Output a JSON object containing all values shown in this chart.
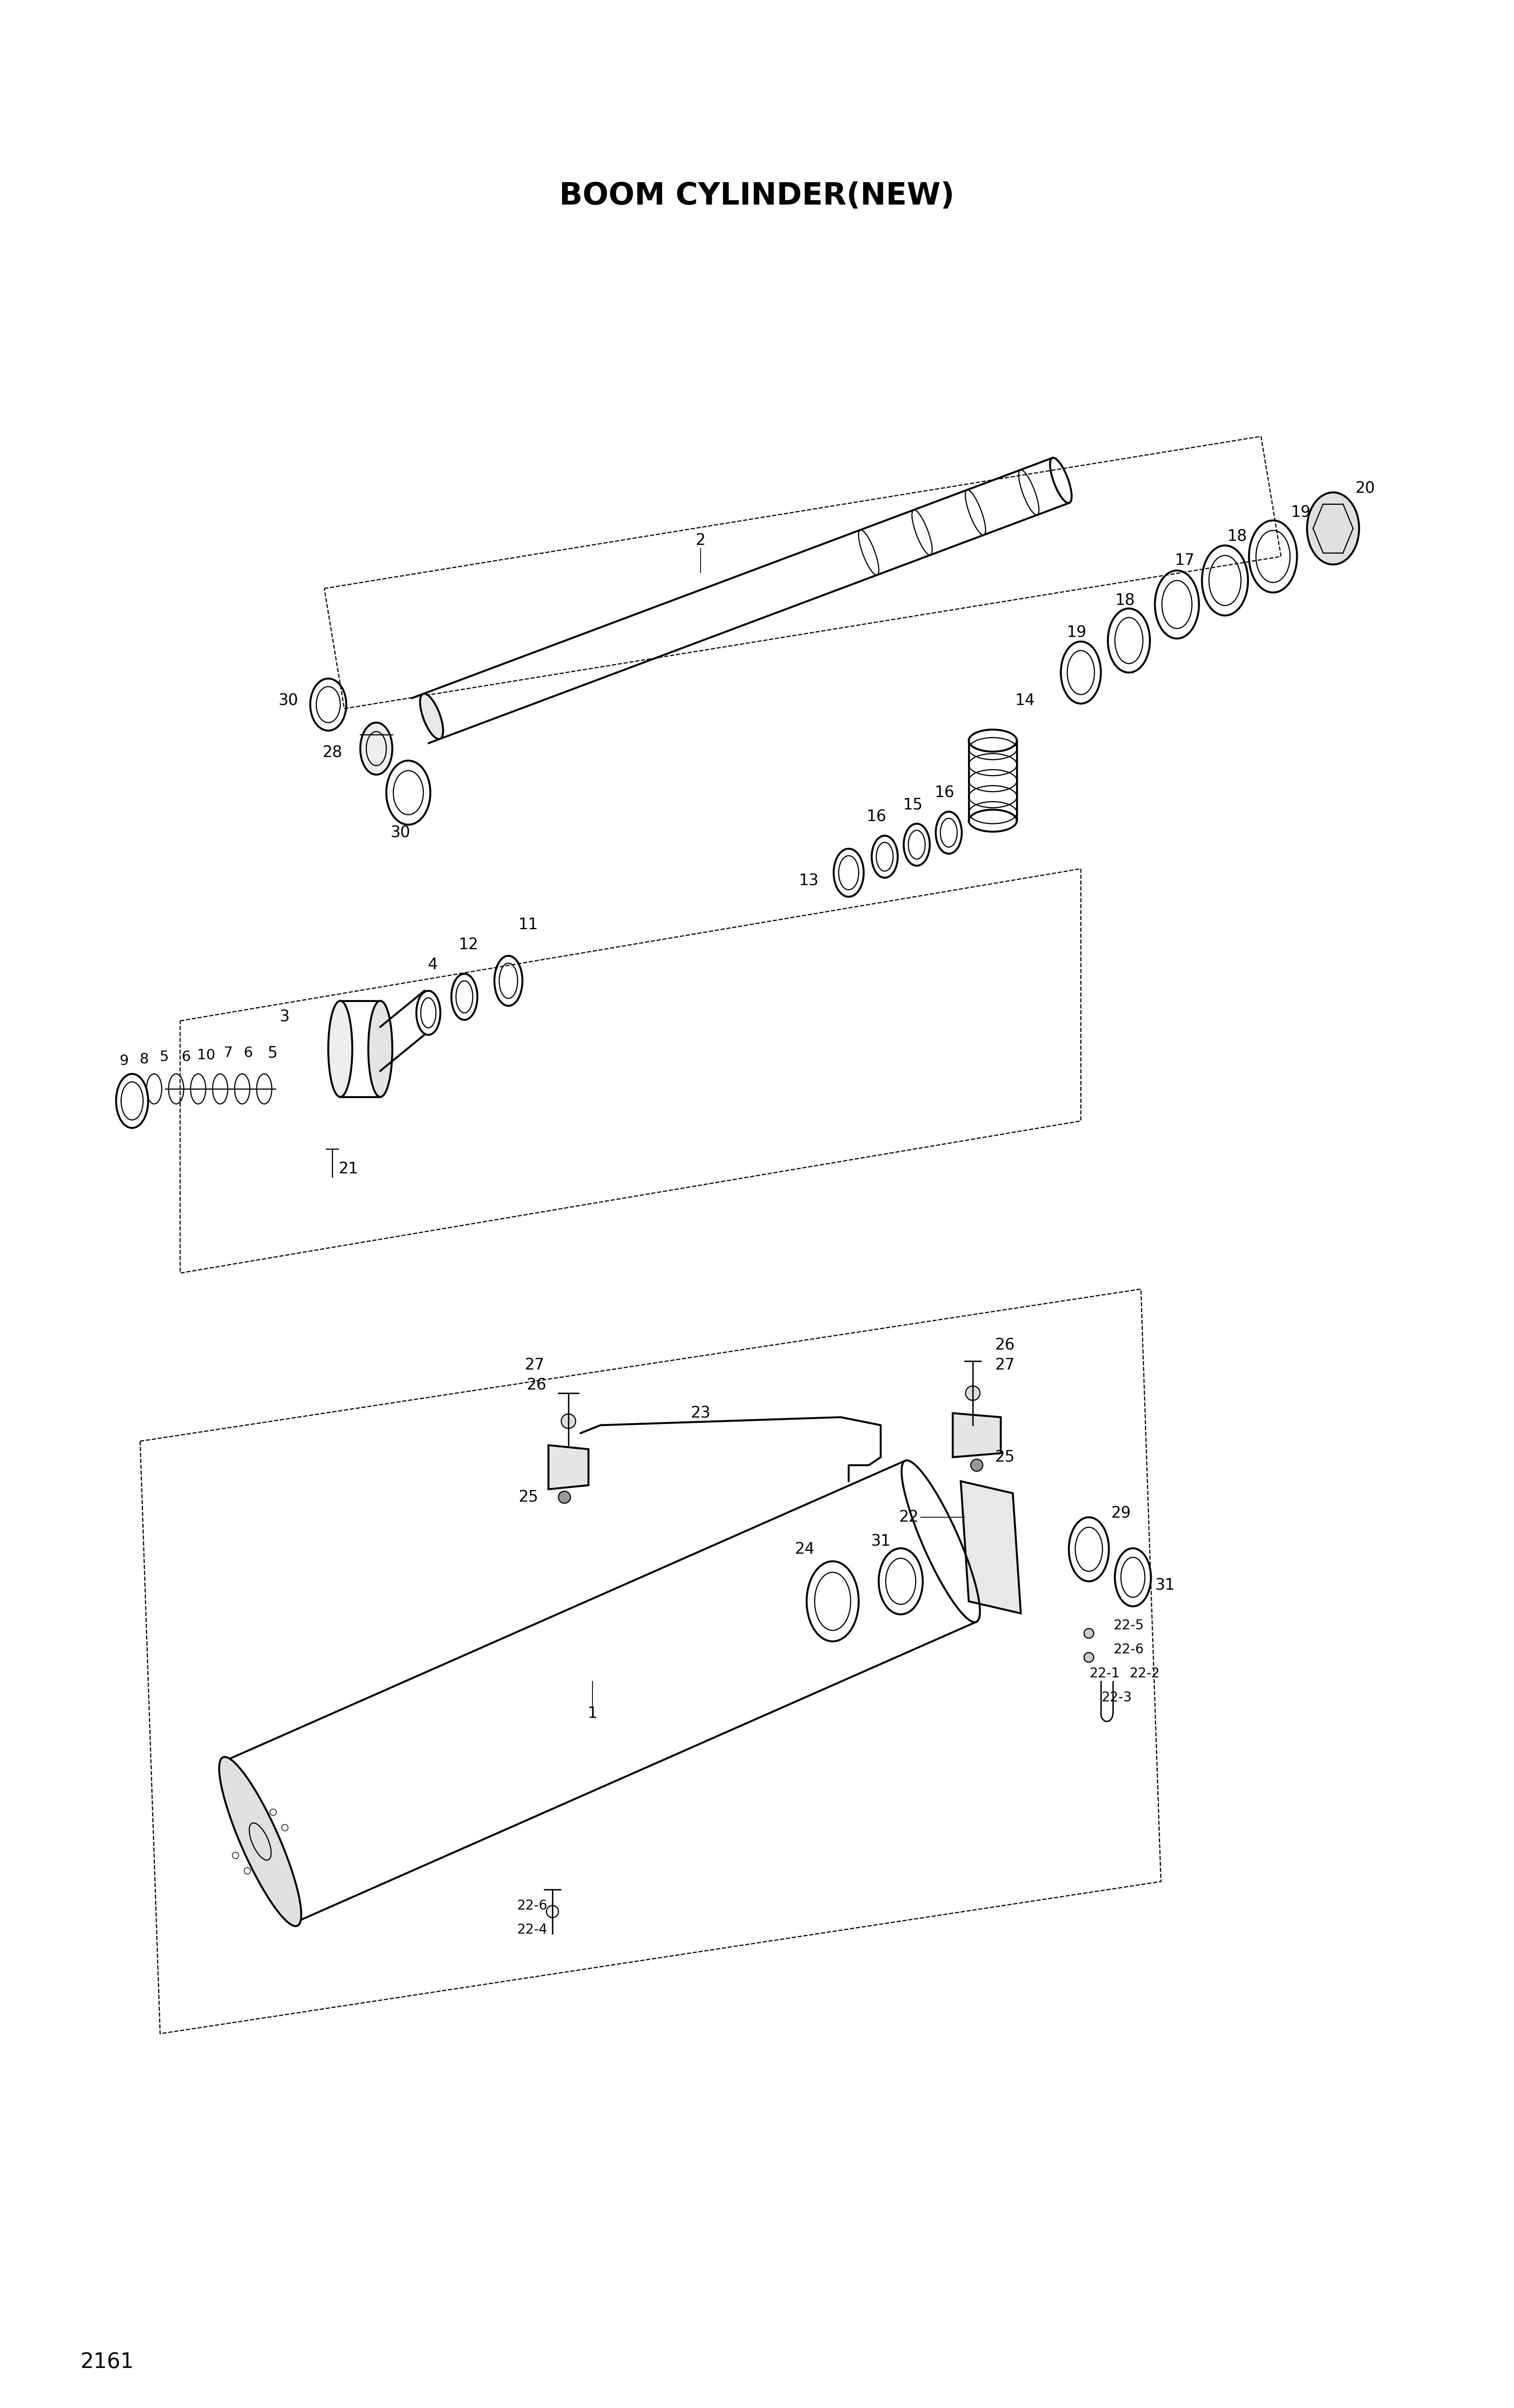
{
  "title": "BOOM CYLINDER(NEW)",
  "page_number": "2161",
  "background_color": "#ffffff",
  "line_color": "#000000",
  "title_fontsize": 55,
  "label_fontsize": 28,
  "page_fontsize": 38,
  "fig_width": 37.82,
  "fig_height": 60.15
}
